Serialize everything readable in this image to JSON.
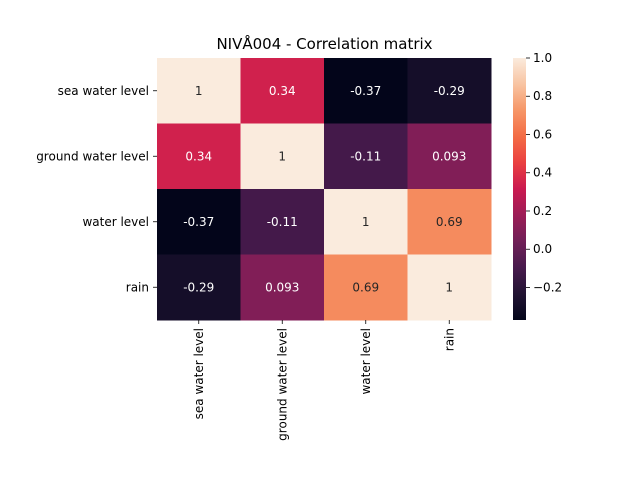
{
  "chart_data": {
    "type": "heatmap",
    "title": "NIVÅ004 - Correlation matrix",
    "xlabel": "",
    "ylabel": "",
    "x_categories": [
      "sea water level",
      "ground water level",
      "water level",
      "rain"
    ],
    "y_categories": [
      "sea water level",
      "ground water level",
      "water level",
      "rain"
    ],
    "values": [
      [
        1,
        0.34,
        -0.37,
        -0.29
      ],
      [
        0.34,
        1,
        -0.11,
        0.093
      ],
      [
        -0.37,
        -0.11,
        1,
        0.69
      ],
      [
        -0.29,
        0.093,
        0.69,
        1
      ]
    ],
    "annotations": [
      [
        "1",
        "0.34",
        "-0.37",
        "-0.29"
      ],
      [
        "0.34",
        "1",
        "-0.11",
        "0.093"
      ],
      [
        "-0.37",
        "-0.11",
        "1",
        "0.69"
      ],
      [
        "-0.29",
        "0.093",
        "0.69",
        "1"
      ]
    ],
    "colormap": "rocket",
    "vmin": -0.37,
    "vmax": 1.0,
    "colorbar": {
      "ticks": [
        -0.2,
        0.0,
        0.2,
        0.4,
        0.6,
        0.8,
        1.0
      ],
      "tick_labels": [
        "−0.2",
        "0.0",
        "0.2",
        "0.4",
        "0.6",
        "0.8",
        "1.0"
      ]
    },
    "grid": false,
    "legend": "colorbar-right"
  }
}
